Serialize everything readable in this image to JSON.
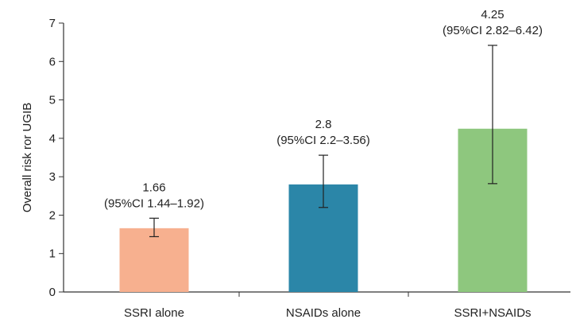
{
  "chart_data": {
    "type": "bar",
    "title": "",
    "xlabel": "",
    "ylabel": "Overall risk ror UGIB",
    "ylim": [
      0,
      7
    ],
    "yticks": [
      0,
      1,
      2,
      3,
      4,
      5,
      6,
      7
    ],
    "grid": false,
    "legend": "none",
    "categories": [
      "SSRI alone",
      "NSAIDs alone",
      "SSRI+NSAIDs"
    ],
    "values": [
      1.66,
      2.8,
      4.25
    ],
    "ci_low": [
      1.44,
      2.2,
      2.82
    ],
    "ci_high": [
      1.92,
      3.56,
      6.42
    ],
    "value_labels": [
      "1.66",
      "2.8",
      "4.25"
    ],
    "ci_labels": [
      "(95%CI 1.44–1.92)",
      "(95%CI 2.2–3.56)",
      "(95%CI 2.82–6.42)"
    ],
    "colors": [
      "#f7b08f",
      "#2b86a8",
      "#8ec77e"
    ],
    "errorbar_color": "#222222",
    "axis_color": "#333333"
  }
}
